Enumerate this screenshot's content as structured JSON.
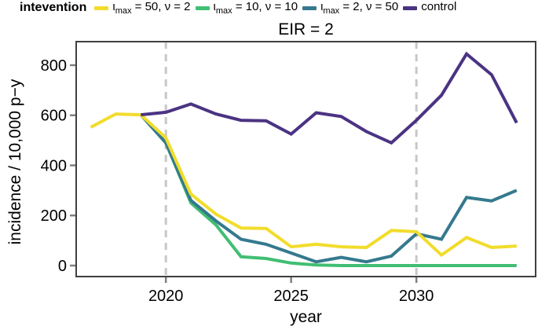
{
  "figure": {
    "legend": {
      "title": "intevention",
      "entries": [
        {
          "name": "imax50nu2",
          "color": "#F2DC2B",
          "pre": "ι",
          "sub": "max",
          "post": " = 50, ν = 2"
        },
        {
          "name": "imax10nu10",
          "color": "#41BE73",
          "pre": "ι",
          "sub": "max",
          "post": " = 10, ν = 10"
        },
        {
          "name": "imax2nu50",
          "color": "#35798E",
          "pre": "ι",
          "sub": "max",
          "post": " = 2, ν = 50"
        },
        {
          "name": "control",
          "color": "#4B3383",
          "pre": "control",
          "sub": "",
          "post": ""
        }
      ]
    }
  },
  "chart_data": {
    "type": "line",
    "title": "EIR = 2",
    "xlabel": "year",
    "ylabel": "incidence / 10,000 p−y",
    "x": [
      2017,
      2018,
      2019,
      2020,
      2021,
      2022,
      2023,
      2024,
      2025,
      2026,
      2027,
      2028,
      2029,
      2030,
      2031,
      2032,
      2033,
      2034
    ],
    "xlim": [
      2016.42,
      2034.76
    ],
    "ylim": [
      -44,
      894
    ],
    "xticks": [
      2020,
      2025,
      2030
    ],
    "yticks": [
      0,
      200,
      400,
      600,
      800
    ],
    "grid": false,
    "legend_position": "top",
    "vlines": {
      "x": [
        2020,
        2030
      ],
      "style": "dashed",
      "color": "#c7c7c7"
    },
    "axis_color": "#404040",
    "tick_color": "#7f7f7f",
    "text_color": "#000000",
    "series": [
      {
        "id": "imax50nu2",
        "label": "ιmax = 50, ν = 2",
        "color": "#F2DC2B",
        "values": [
          552,
          605,
          602,
          510,
          285,
          205,
          150,
          148,
          75,
          85,
          75,
          72,
          140,
          135,
          42,
          112,
          72,
          78
        ]
      },
      {
        "id": "imax10nu10",
        "label": "ιmax = 10, ν = 10",
        "color": "#41BE73",
        "values": [
          null,
          null,
          602,
          490,
          250,
          162,
          35,
          28,
          10,
          2,
          0,
          0,
          0,
          0,
          0,
          0,
          0,
          0
        ]
      },
      {
        "id": "imax2nu50",
        "label": "ιmax = 2, ν = 50",
        "color": "#35798E",
        "values": [
          null,
          null,
          602,
          490,
          260,
          178,
          105,
          85,
          50,
          15,
          33,
          15,
          38,
          127,
          105,
          272,
          258,
          300
        ]
      },
      {
        "id": "control",
        "label": "control",
        "color": "#4B3383",
        "values": [
          null,
          null,
          602,
          612,
          645,
          605,
          580,
          578,
          525,
          610,
          595,
          535,
          490,
          580,
          680,
          845,
          762,
          570
        ]
      }
    ],
    "draw_order": [
      "imax10nu10",
      "imax2nu50",
      "imax50nu2",
      "control"
    ]
  }
}
